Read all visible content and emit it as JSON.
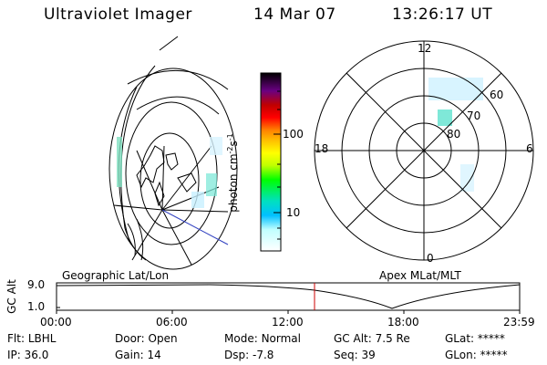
{
  "header": {
    "title": "Ultraviolet Imager",
    "date": "14 Mar 07",
    "time": "13:26:17 UT"
  },
  "panels": {
    "left_label": "Geographic Lat/Lon",
    "right_label": "Apex MLat/MLT"
  },
  "colorbar": {
    "label": "photon cm",
    "label_exp1": "-2",
    "label_s": "s",
    "label_exp2": "-1",
    "ticks": [
      "100",
      "10"
    ],
    "scale": "log",
    "colors": [
      "#000000",
      "#4b0062",
      "#6a0082",
      "#c00000",
      "#ff0000",
      "#ff8000",
      "#ffc000",
      "#ffff00",
      "#c0ff00",
      "#00ff00",
      "#00e0c0",
      "#00c0ff",
      "#c0ffff",
      "#ffffff"
    ]
  },
  "polar": {
    "mlt_labels": [
      "12",
      "18",
      "6",
      "0"
    ],
    "lat_labels": [
      "60",
      "70",
      "80"
    ]
  },
  "alt_plot": {
    "ylabel": "GC Alt",
    "yticks": [
      "9.0",
      "1.0"
    ],
    "xticks": [
      "00:00",
      "06:00",
      "12:00",
      "18:00",
      "23:59"
    ],
    "marker_time": "13:26",
    "marker_color": "#cc0000"
  },
  "info": {
    "row1": [
      {
        "key": "Flt:",
        "value": "LBHL"
      },
      {
        "key": "Door:",
        "value": "Open"
      },
      {
        "key": "Mode:",
        "value": "Normal"
      },
      {
        "key": "GC Alt:",
        "value": "7.5 Re"
      },
      {
        "key": "GLat:",
        "value": "*****"
      }
    ],
    "row2": [
      {
        "key": "IP:",
        "value": "36.0"
      },
      {
        "key": "Gain:",
        "value": "14"
      },
      {
        "key": "Dsp:",
        "value": "-7.8"
      },
      {
        "key": "Seq:",
        "value": "39"
      },
      {
        "key": "GLon:",
        "value": "*****"
      }
    ]
  }
}
